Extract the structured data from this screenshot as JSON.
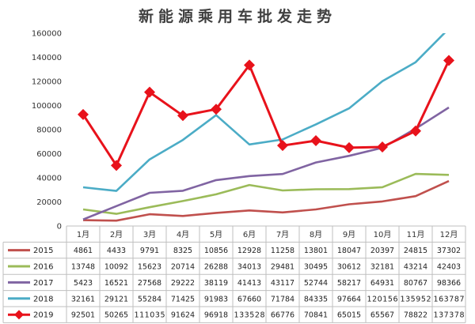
{
  "chart_data": {
    "type": "line",
    "title": "新能源乘用车批发走势",
    "xlabel": "",
    "ylabel": "",
    "ylim": [
      0,
      160000
    ],
    "yticks": [
      "0",
      "20000",
      "40000",
      "60000",
      "80000",
      "100000",
      "120000",
      "140000",
      "160000"
    ],
    "categories": [
      "1月",
      "2月",
      "3月",
      "4月",
      "5月",
      "6月",
      "7月",
      "8月",
      "9月",
      "10月",
      "11月",
      "12月"
    ],
    "grid": false,
    "legend": "data-table",
    "series": [
      {
        "name": "2015",
        "color": "#c0504d",
        "marker": "none",
        "values": [
          4861,
          4433,
          9791,
          8325,
          10856,
          12928,
          11258,
          13801,
          18047,
          20397,
          24815,
          37302
        ]
      },
      {
        "name": "2016",
        "color": "#9bbb59",
        "marker": "none",
        "values": [
          13748,
          10092,
          15623,
          20714,
          26288,
          34013,
          29481,
          30495,
          30612,
          32181,
          43214,
          42403
        ]
      },
      {
        "name": "2017",
        "color": "#8064a2",
        "marker": "none",
        "values": [
          5423,
          16521,
          27568,
          29222,
          38119,
          41413,
          43117,
          52744,
          58217,
          64931,
          80767,
          98366
        ]
      },
      {
        "name": "2018",
        "color": "#4bacc6",
        "marker": "none",
        "values": [
          32161,
          29121,
          55284,
          71425,
          91983,
          67660,
          71784,
          84335,
          97664,
          120156,
          135952,
          163787
        ]
      },
      {
        "name": "2019",
        "color": "#e8121b",
        "marker": "diamond",
        "values": [
          92501,
          50265,
          111035,
          91624,
          96918,
          133528,
          66776,
          70841,
          65015,
          65567,
          78822,
          137378
        ]
      }
    ]
  },
  "table": {
    "rows": [
      {
        "name": "2015",
        "cells": [
          "4861",
          "4433",
          "9791",
          "8325",
          "10856",
          "12928",
          "11258",
          "13801",
          "18047",
          "20397",
          "24815",
          "37302"
        ]
      },
      {
        "name": "2016",
        "cells": [
          "13748",
          "10092",
          "15623",
          "20714",
          "26288",
          "34013",
          "29481",
          "30495",
          "30612",
          "32181",
          "43214",
          "42403"
        ]
      },
      {
        "name": "2017",
        "cells": [
          "5423",
          "16521",
          "27568",
          "29222",
          "38119",
          "41413",
          "43117",
          "52744",
          "58217",
          "64931",
          "80767",
          "98366"
        ]
      },
      {
        "name": "2018",
        "cells": [
          "32161",
          "29121",
          "55284",
          "71425",
          "91983",
          "67660",
          "71784",
          "84335",
          "97664",
          "120156",
          "135952",
          "163787"
        ]
      },
      {
        "name": "2019",
        "cells": [
          "92501",
          "50265",
          "111035",
          "91624",
          "96918",
          "133528",
          "66776",
          "70841",
          "65015",
          "65567",
          "78822",
          "137378"
        ]
      }
    ]
  }
}
